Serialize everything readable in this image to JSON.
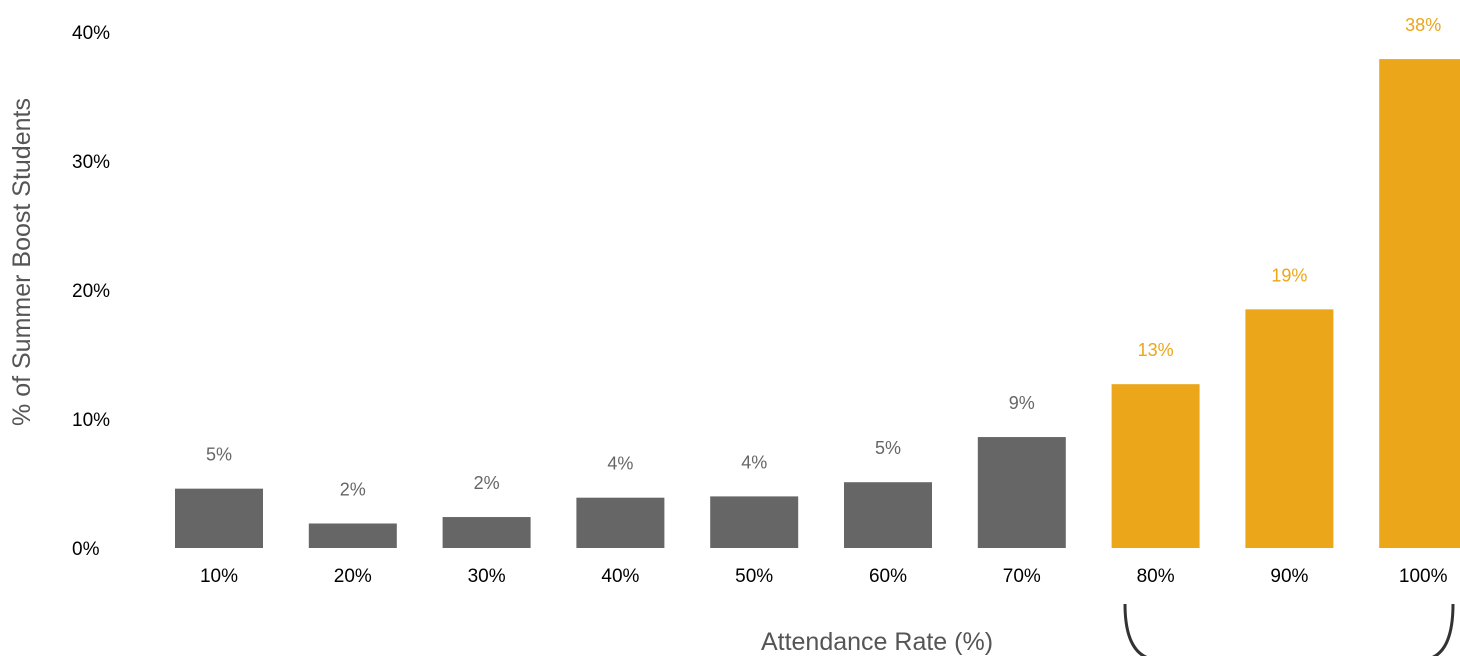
{
  "chart_data": {
    "type": "bar",
    "categories": [
      "10%",
      "20%",
      "30%",
      "40%",
      "50%",
      "60%",
      "70%",
      "80%",
      "90%",
      "100%"
    ],
    "values": [
      4.6,
      1.9,
      2.4,
      3.9,
      4.0,
      5.1,
      8.6,
      12.7,
      18.5,
      37.9
    ],
    "data_labels": [
      "5%",
      "2%",
      "2%",
      "4%",
      "4%",
      "5%",
      "9%",
      "13%",
      "19%",
      "38%"
    ],
    "highlighted": [
      "80%",
      "90%",
      "100%"
    ],
    "y_ticks": [
      "0%",
      "10%",
      "20%",
      "30%",
      "40%"
    ],
    "ylim": [
      0,
      40
    ],
    "xlabel": "Attendance Rate (%)",
    "ylabel": "% of Summer Boost Students",
    "title": "",
    "grid": false,
    "colors": {
      "base_bar": "#666666",
      "highlight_bar": "#eba61a",
      "base_label": "#666666",
      "highlight_label": "#eba61a",
      "bracket": "#333333"
    }
  }
}
